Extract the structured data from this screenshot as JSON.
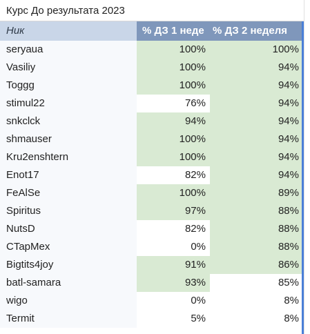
{
  "title": "Курс До результата 2023",
  "columns": [
    "Ник",
    "% ДЗ 1 неде",
    "% ДЗ 2 неделя"
  ],
  "colors": {
    "header_blue": "#7f97bb",
    "name_header": "#c9d6e8",
    "highlight_green": "#d9ead3",
    "selection_blue": "#4a7fd8"
  },
  "rows": [
    {
      "name": "seryaua",
      "w1": "100%",
      "w2": "100%",
      "w1_green": true,
      "w2_green": true
    },
    {
      "name": "Vasiliy",
      "w1": "100%",
      "w2": "94%",
      "w1_green": true,
      "w2_green": true
    },
    {
      "name": "Toggg",
      "w1": "100%",
      "w2": "94%",
      "w1_green": true,
      "w2_green": true
    },
    {
      "name": "stimul22",
      "w1": "76%",
      "w2": "94%",
      "w1_green": false,
      "w2_green": true
    },
    {
      "name": "snkclck",
      "w1": "94%",
      "w2": "94%",
      "w1_green": true,
      "w2_green": true
    },
    {
      "name": "shmauser",
      "w1": "100%",
      "w2": "94%",
      "w1_green": true,
      "w2_green": true
    },
    {
      "name": "Kru2enshtern",
      "w1": "100%",
      "w2": "94%",
      "w1_green": true,
      "w2_green": true
    },
    {
      "name": "Enot17",
      "w1": "82%",
      "w2": "94%",
      "w1_green": false,
      "w2_green": true
    },
    {
      "name": "FeAlSe",
      "w1": "100%",
      "w2": "89%",
      "w1_green": true,
      "w2_green": true
    },
    {
      "name": "Spiritus",
      "w1": "97%",
      "w2": "88%",
      "w1_green": true,
      "w2_green": true
    },
    {
      "name": "NutsD",
      "w1": "82%",
      "w2": "88%",
      "w1_green": false,
      "w2_green": true
    },
    {
      "name": "CTapMex",
      "w1": "0%",
      "w2": "88%",
      "w1_green": false,
      "w2_green": true
    },
    {
      "name": "Bigtits4joy",
      "w1": "91%",
      "w2": "86%",
      "w1_green": true,
      "w2_green": true
    },
    {
      "name": "batl-samara",
      "w1": "93%",
      "w2": "85%",
      "w1_green": true,
      "w2_green": false
    },
    {
      "name": "wigo",
      "w1": "0%",
      "w2": "8%",
      "w1_green": false,
      "w2_green": false
    },
    {
      "name": "Termit",
      "w1": "5%",
      "w2": "8%",
      "w1_green": false,
      "w2_green": false
    }
  ]
}
